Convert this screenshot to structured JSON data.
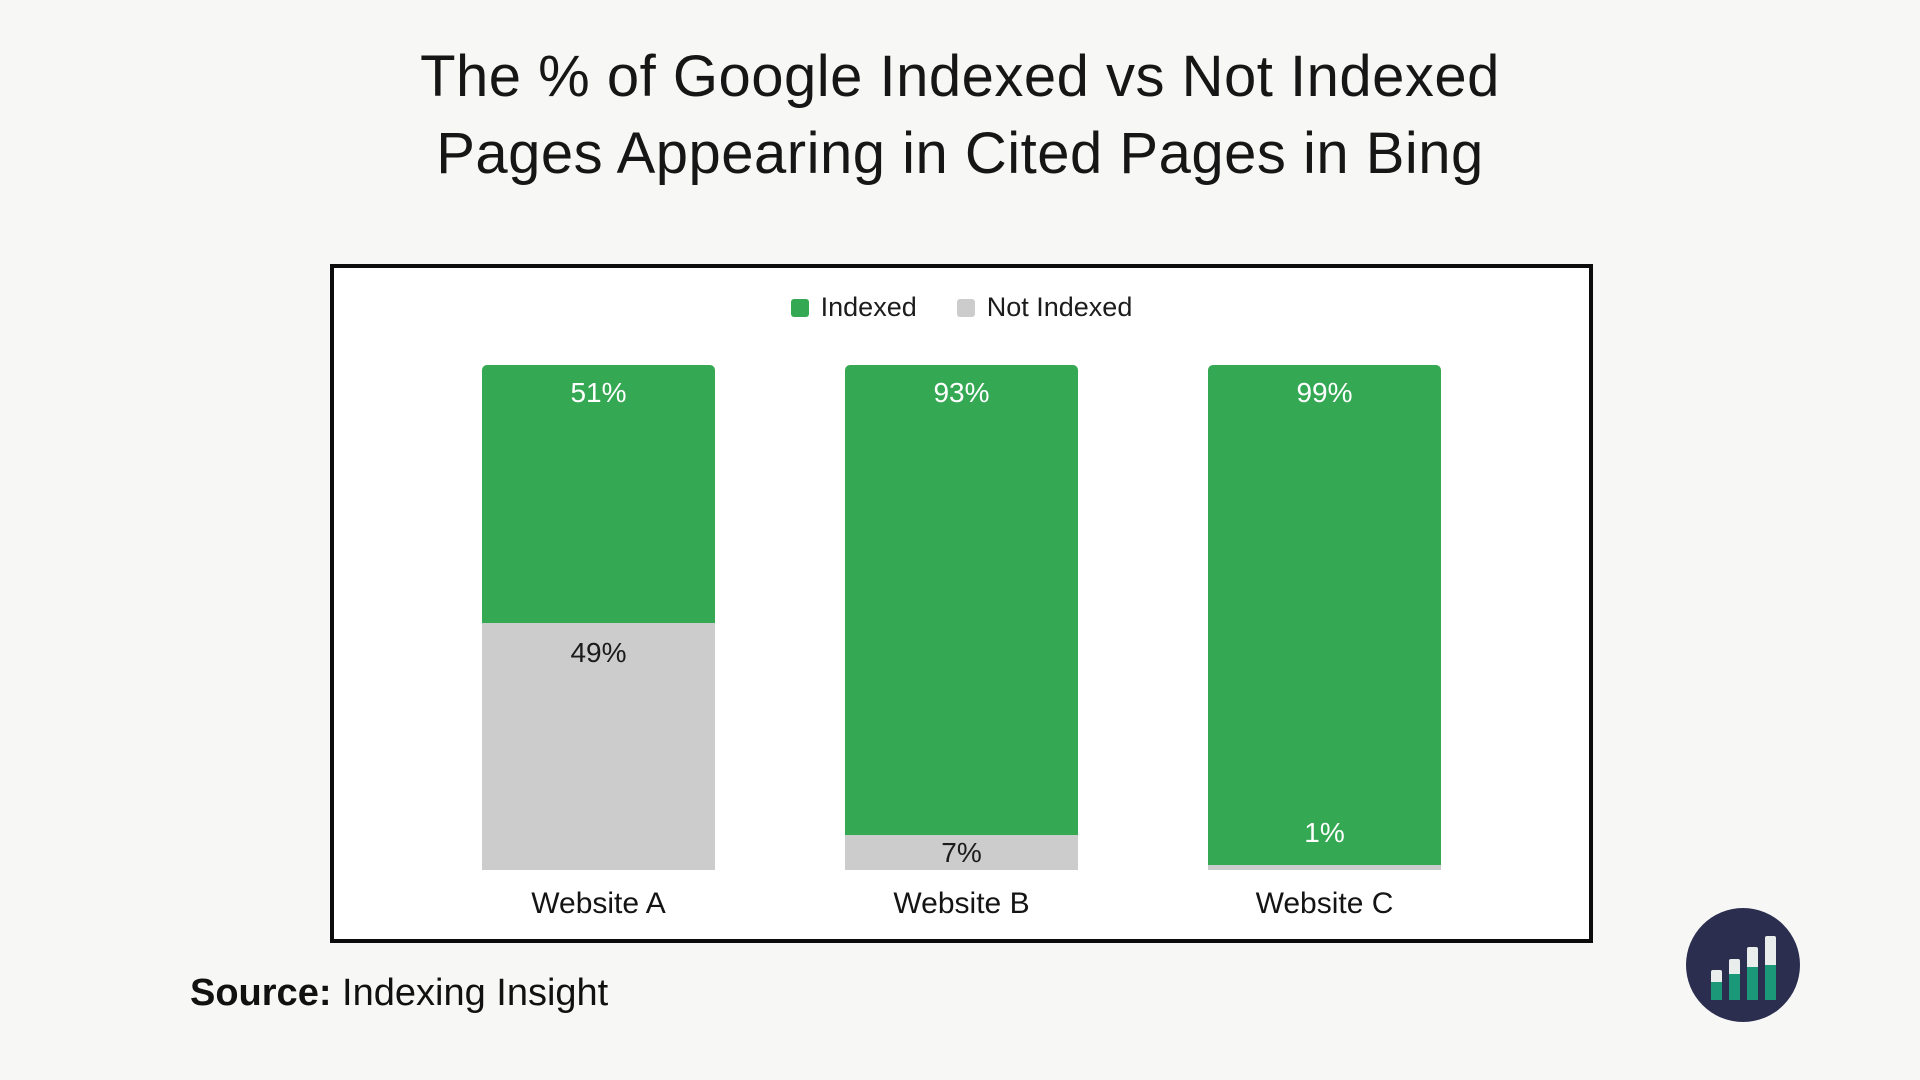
{
  "title": {
    "line1": "The % of Google Indexed vs Not Indexed",
    "line2": "Pages Appearing in Cited Pages in Bing"
  },
  "source": {
    "label": "Source:",
    "value": "Indexing Insight"
  },
  "colors": {
    "page_background": "#f7f7f5",
    "panel_border": "#0c0c0c",
    "indexed_green": "#34a853",
    "not_indexed_gray": "#cccccc",
    "logo_navy": "#2b2e4f",
    "logo_teal": "#1a9878"
  },
  "icons": {
    "logo": "indexing-insight-bar-chart-logo"
  },
  "chart_data": {
    "type": "bar",
    "stacked": true,
    "title": "The % of Google Indexed vs Not Indexed Pages Appearing in Cited Pages in Bing",
    "categories": [
      "Website A",
      "Website B",
      "Website C"
    ],
    "series": [
      {
        "name": "Indexed",
        "color": "#34a853",
        "values": [
          51,
          93,
          99
        ]
      },
      {
        "name": "Not Indexed",
        "color": "#cccccc",
        "values": [
          49,
          7,
          1
        ]
      }
    ],
    "value_suffix": "%",
    "ylim": [
      0,
      100
    ],
    "grid": false,
    "legend_position": "top-center",
    "xlabel": "",
    "ylabel": ""
  }
}
